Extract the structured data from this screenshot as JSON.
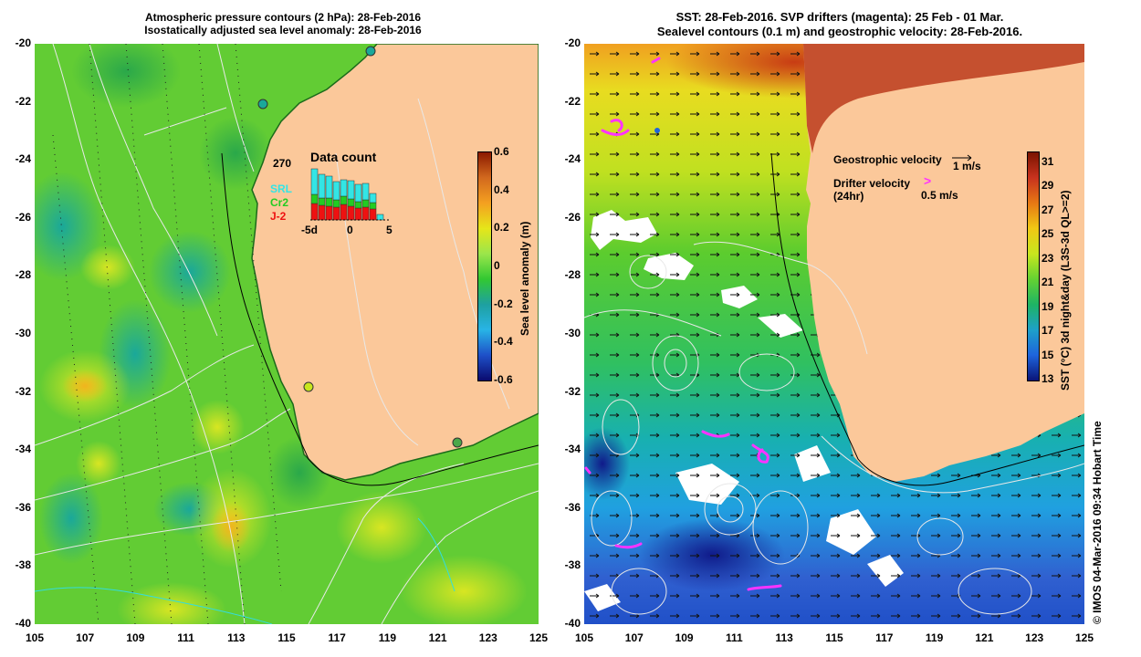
{
  "left_panel": {
    "title_line1": "Atmospheric pressure contours (2 hPa): 28-Feb-2016",
    "title_line2": "Isostatically adjusted sea level anomaly: 28-Feb-2016",
    "colorbar": {
      "title": "Sea level anomaly (m)",
      "ticks": [
        "0.6",
        "0.4",
        "0.2",
        "0",
        "-0.2",
        "-0.4",
        "-0.6"
      ],
      "colors": [
        "#8b1a00",
        "#d2691e",
        "#f4a020",
        "#e6e619",
        "#9be64b",
        "#32c832",
        "#1ea0a0",
        "#28b4e6",
        "#1e50c8",
        "#0a0a6e"
      ]
    },
    "inset": {
      "title": "Data count",
      "max_count": "270",
      "missions": [
        {
          "name": "SRL",
          "color": "#33e5e5"
        },
        {
          "name": "Cr2",
          "color": "#22cc22"
        },
        {
          "name": "J-2",
          "color": "#ee1111"
        }
      ],
      "xticks": [
        "-5d",
        "0",
        "5"
      ]
    }
  },
  "right_panel": {
    "title_line1": "SST: 28-Feb-2016. SVP drifters (magenta): 25 Feb - 01 Mar.",
    "title_line2": "Sealevel contours (0.1 m) and geostrophic velocity: 28-Feb-2016.",
    "legend": {
      "geo_label": "Geostrophic velocity",
      "geo_speed": "1 m/s",
      "drifter_label": "Drifter velocity",
      "drifter_sub": "(24hr)",
      "drifter_speed": "0.5 m/s"
    },
    "colorbar": {
      "title": "SST (°C) 3d night&day (L3S-3d QL>=2)",
      "ticks": [
        "31",
        "29",
        "27",
        "25",
        "23",
        "21",
        "19",
        "17",
        "15",
        "13"
      ],
      "colors": [
        "#7a1400",
        "#c8321e",
        "#e67814",
        "#f0c814",
        "#c8e61e",
        "#64d232",
        "#1eb464",
        "#1ea0c8",
        "#1e64dc",
        "#0a1478"
      ]
    }
  },
  "axes": {
    "y_labels": [
      "-20",
      "-22",
      "-24",
      "-26",
      "-28",
      "-30",
      "-32",
      "-34",
      "-36",
      "-38",
      "-40"
    ],
    "x_labels": [
      "105",
      "107",
      "109",
      "111",
      "113",
      "115",
      "117",
      "119",
      "121",
      "123",
      "125"
    ]
  },
  "credit": "© IMOS 04-Mar-2016 09:34 Hobart Time",
  "colors": {
    "land": "#fbc89a",
    "drifter": "#ff33ff",
    "ocean_green": "#5ccc2e"
  }
}
